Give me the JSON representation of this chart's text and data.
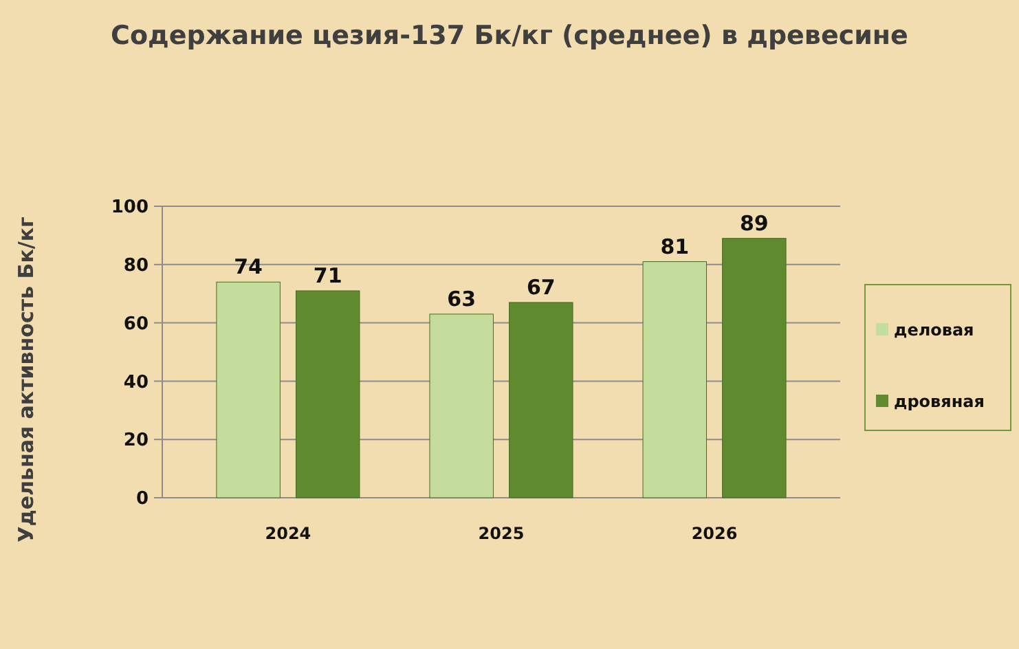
{
  "chart_data": {
    "type": "bar",
    "title": "Содержание цезия-137 Бк/кг (среднее) в древесине",
    "ylabel": "Удельная активность Бк/кг",
    "categories": [
      "2024",
      "2025",
      "2026"
    ],
    "series": [
      {
        "name": "деловая",
        "color": "#c4dd9c",
        "values": [
          74,
          63,
          81
        ]
      },
      {
        "name": "дровяная",
        "color": "#5f8a2e",
        "values": [
          71,
          67,
          89
        ]
      }
    ],
    "ylim": [
      0,
      100
    ],
    "yticks": [
      0,
      20,
      40,
      60,
      80,
      100
    ],
    "grid": "y",
    "legend": "right",
    "data_labels": true
  }
}
